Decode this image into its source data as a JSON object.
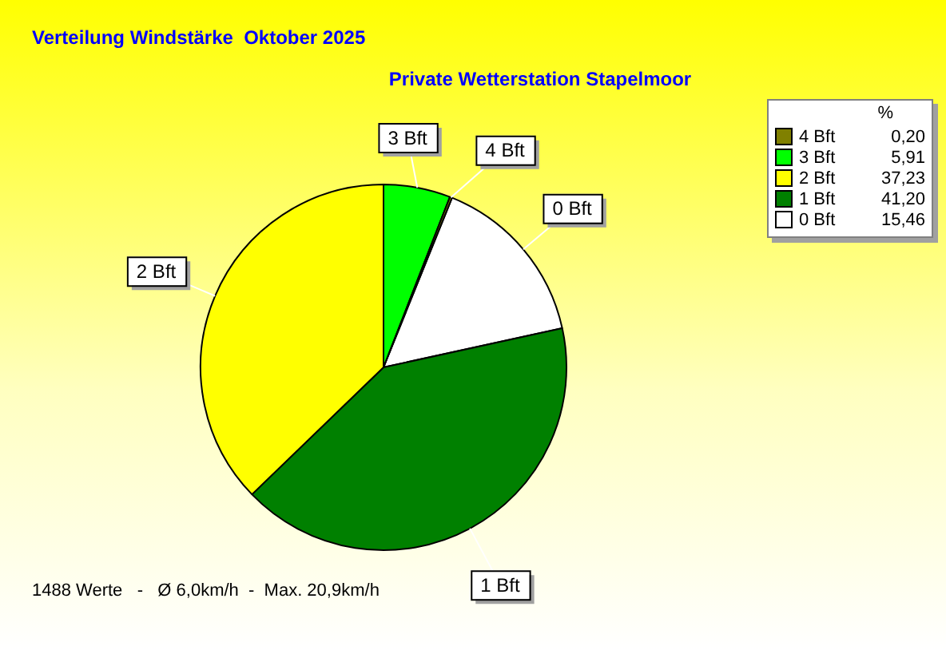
{
  "chart_data": {
    "type": "pie",
    "title": "Verteilung Windstärke  Oktober 2025",
    "subtitle": "Private Wetterstation Stapelmoor",
    "legend_title": "%",
    "categories": [
      "4 Bft",
      "3 Bft",
      "2 Bft",
      "1 Bft",
      "0 Bft"
    ],
    "values": [
      0.2,
      5.91,
      37.23,
      41.2,
      15.46
    ],
    "value_labels": [
      "0,20",
      "5,91",
      "37,23",
      "41,20",
      "15,46"
    ],
    "colors": [
      "#808000",
      "#00ff00",
      "#ffff00",
      "#008000",
      "#ffffff"
    ],
    "legend": "top right",
    "annotations": [
      "1488 Werte   -   Ø 6,0km/h  -  Max. 20,9km/h"
    ]
  }
}
